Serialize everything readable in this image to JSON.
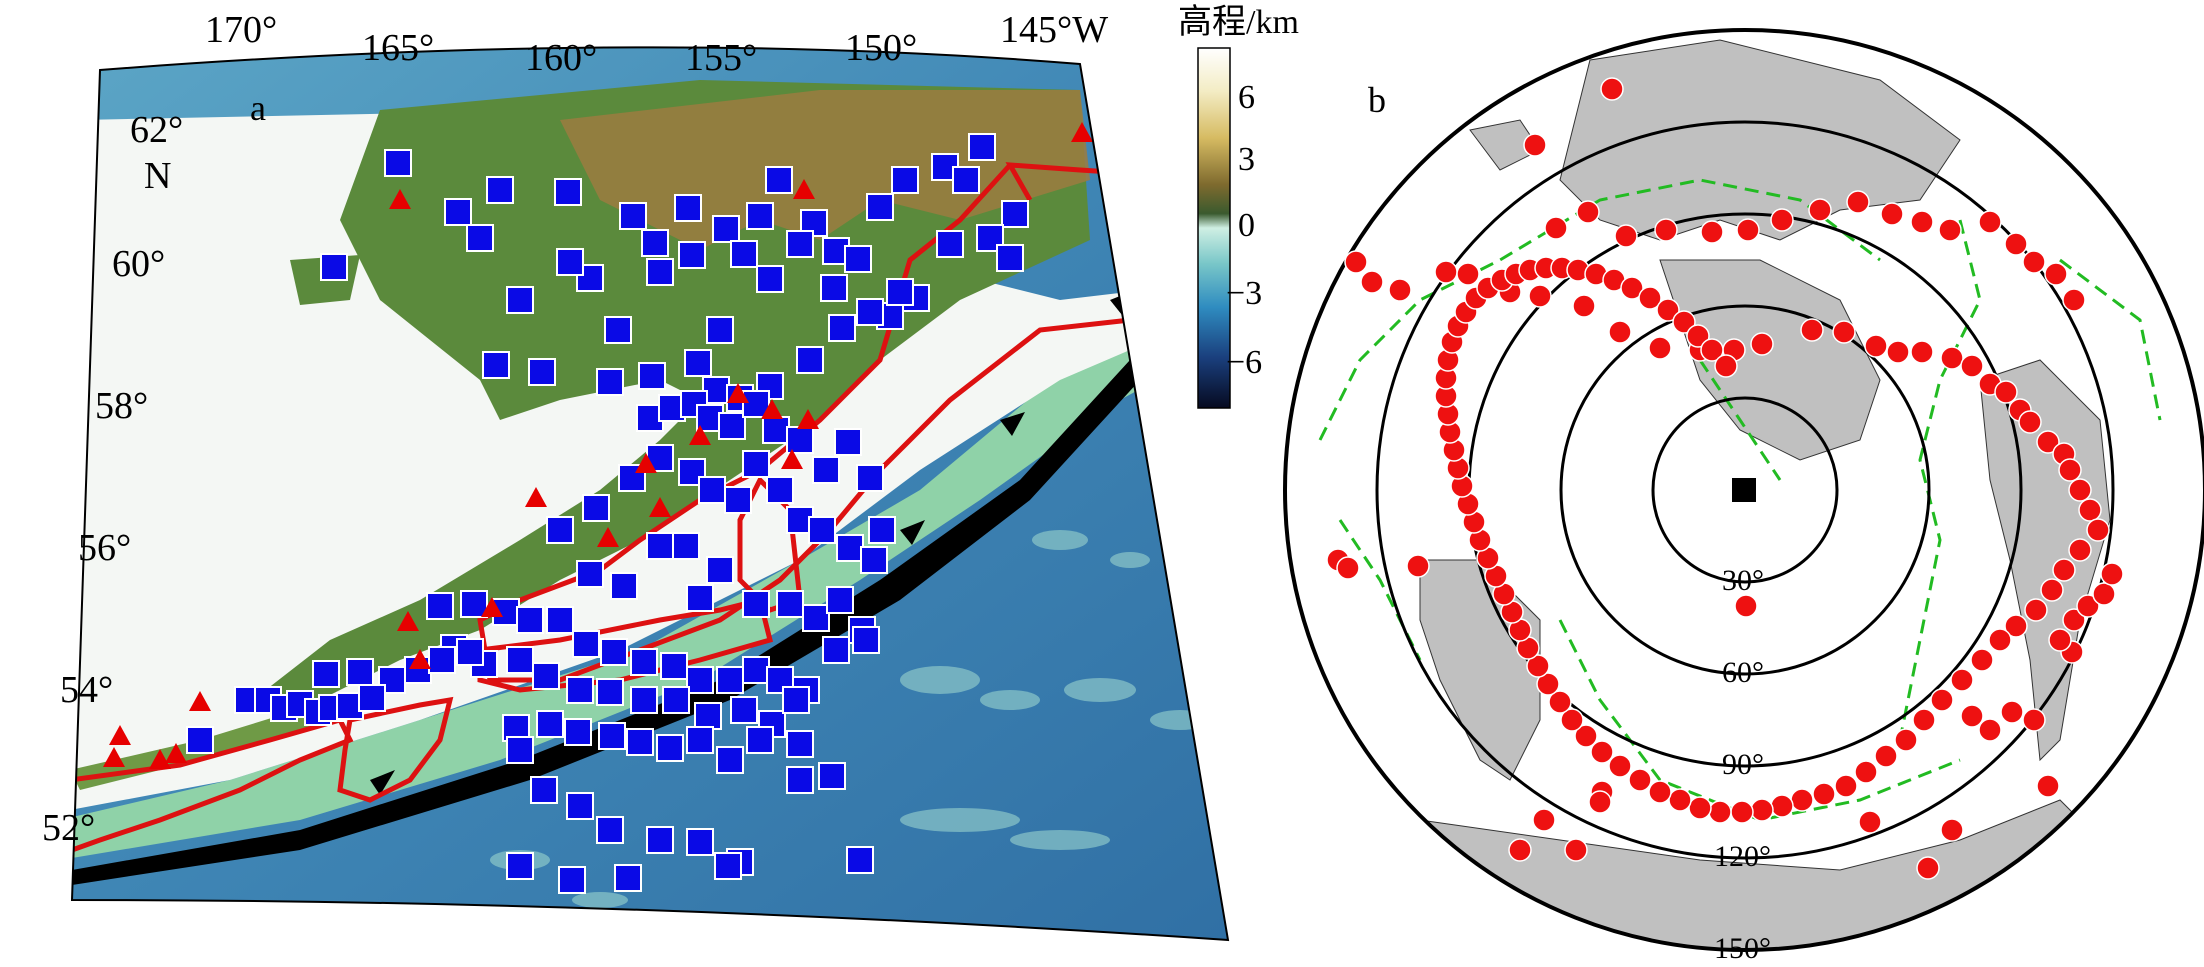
{
  "panel_a": {
    "label": "a",
    "lon_ticks": [
      "170°",
      "165°",
      "160°",
      "155°",
      "150°",
      "145°W"
    ],
    "lat_ticks": [
      "62°",
      "60°",
      "58°",
      "56°",
      "54°",
      "52°"
    ],
    "lat_unit": "N",
    "colorbar": {
      "title": "高程/km",
      "ticks": [
        "6",
        "3",
        "0",
        "−3",
        "−6"
      ]
    }
  },
  "panel_b": {
    "label": "b",
    "ring_labels": [
      "30°",
      "60°",
      "90°",
      "120°",
      "150°"
    ]
  },
  "colors": {
    "station_square": "#0a0ae6",
    "volcano_triangle": "#e60000",
    "event_circle": "#ee1111",
    "outline_red": "#dd1111",
    "plate_boundary": "#22bb22",
    "land_gray": "#c0c0c0",
    "trench": "#000000"
  }
}
